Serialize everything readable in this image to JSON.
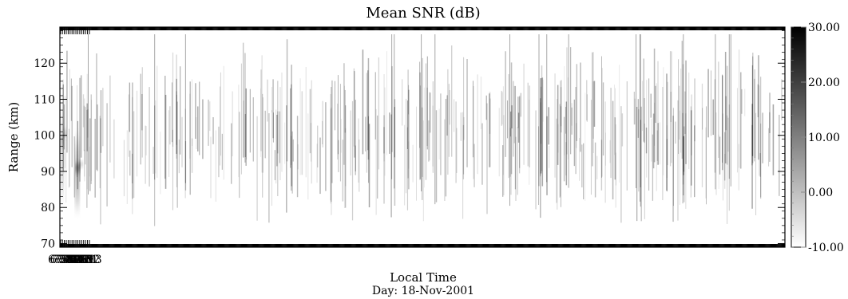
{
  "chart_data": {
    "type": "heatmap",
    "title": "Mean SNR (dB)",
    "xlabel": "Local Time",
    "xlabel2": "Day: 18-Nov-2001",
    "ylabel": "Range (km)",
    "x_ticks": [
      "6:58",
      "6:59",
      "7:00",
      "7:01",
      "7:02",
      "7:03",
      "7:04",
      "7:05",
      "7:06",
      "7:07",
      "7:08",
      "7:09",
      "7:10",
      "7:11",
      "7:12",
      "7:13"
    ],
    "xlim_minutes": [
      417.7,
      793.5
    ],
    "y_ticks": [
      70,
      80,
      90,
      100,
      110,
      120
    ],
    "ylim": [
      69,
      130
    ],
    "colorbar": {
      "ticks": [
        "-10.00",
        "0.00",
        "10.00",
        "20.00",
        "30.00"
      ],
      "values": [
        -10,
        0,
        10,
        20,
        30
      ],
      "range": [
        -10,
        30
      ],
      "colors": [
        "#ffffff",
        "#000000"
      ]
    },
    "features": [
      {
        "t": [
          418.6,
          419.6
        ],
        "r": [
          80,
          108
        ],
        "snr": 22
      },
      {
        "t": [
          418.6,
          419.5
        ],
        "r": [
          96,
          101
        ],
        "snr": 30
      },
      {
        "t": [
          419.5,
          421.0
        ],
        "r": [
          99,
          102
        ],
        "snr": 12
      },
      {
        "t": [
          425.7,
          427.8
        ],
        "r": [
          77,
          102
        ],
        "snr": 14
      },
      {
        "t": [
          426.0,
          428.0
        ],
        "r": [
          89,
          93
        ],
        "snr": 28
      },
      {
        "t": [
          428.0,
          429.5
        ],
        "r": [
          91,
          93
        ],
        "snr": 16
      }
    ]
  }
}
